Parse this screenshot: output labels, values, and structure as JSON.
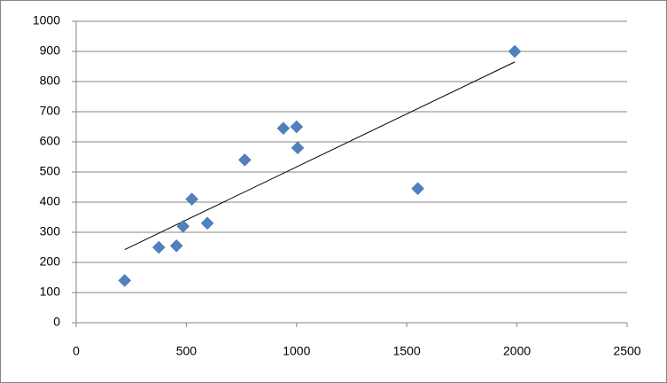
{
  "chart_data": {
    "type": "scatter",
    "x": [
      220,
      375,
      455,
      485,
      525,
      595,
      765,
      940,
      1000,
      1005,
      1550,
      1990
    ],
    "values": [
      140,
      250,
      255,
      320,
      410,
      330,
      540,
      645,
      650,
      580,
      445,
      900
    ],
    "color": "#4f81bd",
    "xlim": [
      0,
      2500
    ],
    "xticks": [
      0,
      500,
      1000,
      1500,
      2000,
      2500
    ],
    "ylim": [
      0,
      1000
    ],
    "yticks": [
      0,
      100,
      200,
      300,
      400,
      500,
      600,
      700,
      800,
      900,
      1000
    ],
    "grid": true,
    "trendline": "linear"
  }
}
